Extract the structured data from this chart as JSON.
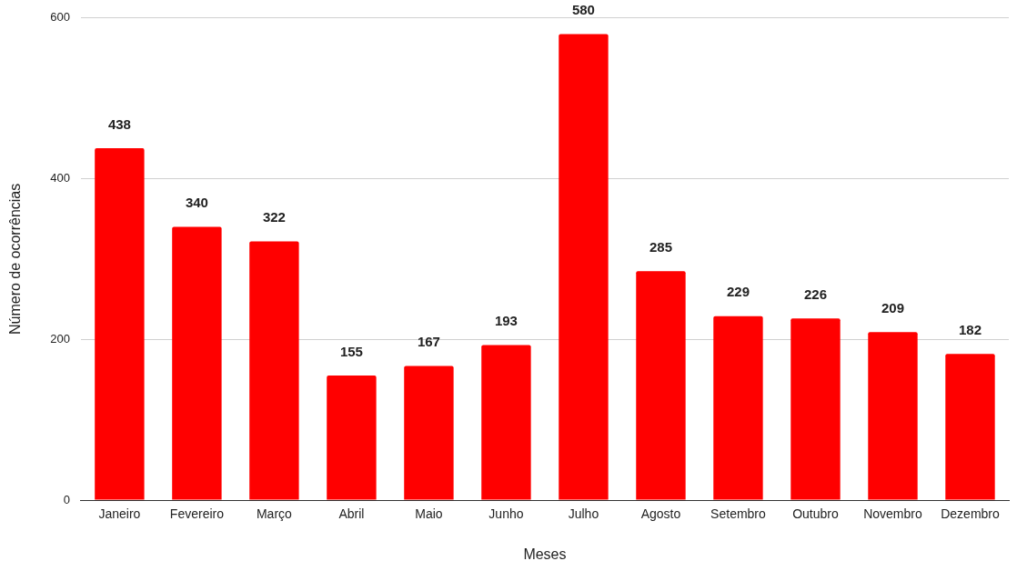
{
  "chart_data": {
    "type": "bar",
    "xlabel": "Meses",
    "ylabel": "Número de ocorrências",
    "categories": [
      "Janeiro",
      "Fevereiro",
      "Março",
      "Abril",
      "Maio",
      "Junho",
      "Julho",
      "Agosto",
      "Setembro",
      "Outubro",
      "Novembro",
      "Dezembro"
    ],
    "values": [
      438,
      340,
      322,
      155,
      167,
      193,
      580,
      285,
      229,
      226,
      209,
      182
    ],
    "color": "#ff0000",
    "ylim": [
      0,
      600
    ],
    "yticks": [
      0,
      200,
      400,
      600
    ],
    "grid": "y",
    "data_labels": true,
    "legend": false
  }
}
